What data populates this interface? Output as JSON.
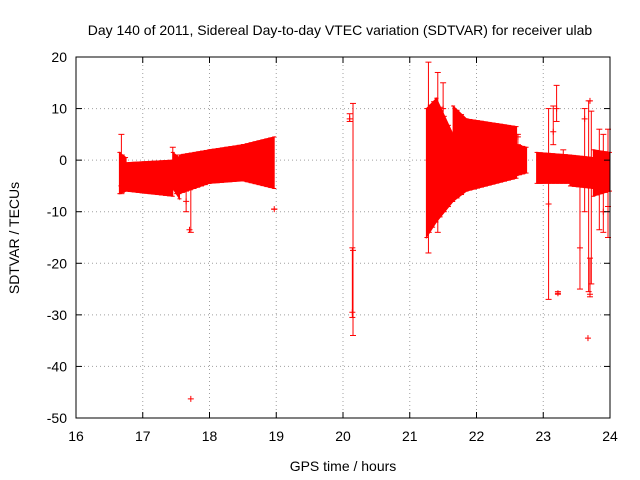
{
  "chart_data": {
    "type": "errorbar-scatter",
    "title": "Day 140 of 2011, Sidereal Day-to-day VTEC variation (SDTVAR) for receiver ulab",
    "xlabel": "GPS time / hours",
    "ylabel": "SDTVAR / TECUs",
    "xlim": [
      16,
      24
    ],
    "ylim": [
      -50,
      20
    ],
    "xticks": [
      16,
      17,
      18,
      19,
      20,
      21,
      22,
      23,
      24
    ],
    "yticks": [
      -50,
      -40,
      -30,
      -20,
      -10,
      0,
      10,
      20
    ],
    "grid": true,
    "series_color": "#ff0000",
    "bands": [
      {
        "x0": 16.65,
        "x1": 16.75,
        "lo0": -6.5,
        "hi0": 1.5,
        "lo1": -6.0,
        "hi1": 0.5
      },
      {
        "x0": 16.75,
        "x1": 17.45,
        "lo0": -6.0,
        "hi0": -0.5,
        "lo1": -7.0,
        "hi1": 0.0
      },
      {
        "x0": 17.45,
        "x1": 17.55,
        "lo0": -5.5,
        "hi0": 1.5,
        "lo1": -7.5,
        "hi1": 0.5
      },
      {
        "x0": 17.55,
        "x1": 18.0,
        "lo0": -6.5,
        "hi0": 1.0,
        "lo1": -4.5,
        "hi1": 2.0
      },
      {
        "x0": 18.0,
        "x1": 18.5,
        "lo0": -4.5,
        "hi0": 2.0,
        "lo1": -4.0,
        "hi1": 3.0
      },
      {
        "x0": 18.5,
        "x1": 18.97,
        "lo0": -4.0,
        "hi0": 3.0,
        "lo1": -5.5,
        "hi1": 4.5
      },
      {
        "x0": 21.25,
        "x1": 21.4,
        "lo0": -15.0,
        "hi0": 10.0,
        "lo1": -12.0,
        "hi1": 12.0
      },
      {
        "x0": 21.4,
        "x1": 21.65,
        "lo0": -12.0,
        "hi0": 12.0,
        "lo1": -8.0,
        "hi1": 5.0
      },
      {
        "x0": 21.65,
        "x1": 21.85,
        "lo0": -8.0,
        "hi0": 10.5,
        "lo1": -6.0,
        "hi1": 8.0
      },
      {
        "x0": 21.85,
        "x1": 22.6,
        "lo0": -6.0,
        "hi0": 8.0,
        "lo1": -3.5,
        "hi1": 6.5
      },
      {
        "x0": 22.6,
        "x1": 22.75,
        "lo0": -3.0,
        "hi0": 3.0,
        "lo1": -2.5,
        "hi1": 2.5
      },
      {
        "x0": 22.9,
        "x1": 23.4,
        "lo0": -4.5,
        "hi0": 1.5,
        "lo1": -4.5,
        "hi1": 1.0
      },
      {
        "x0": 23.4,
        "x1": 23.75,
        "lo0": -5.0,
        "hi0": 1.0,
        "lo1": -5.5,
        "hi1": 0.5
      },
      {
        "x0": 23.75,
        "x1": 24.0,
        "lo0": -7.0,
        "hi0": 2.0,
        "lo1": -6.0,
        "hi1": 1.5
      }
    ],
    "errorbars": [
      {
        "x": 16.68,
        "y": -5.0,
        "lo": -6.5,
        "hi": 5.0
      },
      {
        "x": 17.45,
        "y": -2.0,
        "lo": -3.0,
        "hi": 2.5
      },
      {
        "x": 17.72,
        "y": -4.0,
        "lo": -14.0,
        "hi": 0.0
      },
      {
        "x": 17.65,
        "y": -8.0,
        "lo": -10.0,
        "hi": -5.0
      },
      {
        "x": 18.97,
        "y": -9.5,
        "lo": -9.5,
        "hi": -9.5
      },
      {
        "x": 20.1,
        "y": 8.0,
        "lo": 7.5,
        "hi": 9.0
      },
      {
        "x": 20.15,
        "y": -17.5,
        "lo": -34.0,
        "hi": 11.0
      },
      {
        "x": 20.14,
        "y": -29.5,
        "lo": -30.5,
        "hi": -17.0
      },
      {
        "x": 21.28,
        "y": 0.0,
        "lo": -18.0,
        "hi": 19.0
      },
      {
        "x": 21.42,
        "y": 5.0,
        "lo": -14.0,
        "hi": 17.0
      },
      {
        "x": 21.5,
        "y": 10.0,
        "lo": 8.0,
        "hi": 15.0
      },
      {
        "x": 22.62,
        "y": 4.5,
        "lo": 3.0,
        "hi": 5.0
      },
      {
        "x": 22.95,
        "y": -1.0,
        "lo": -4.5,
        "hi": 1.0
      },
      {
        "x": 23.08,
        "y": -8.5,
        "lo": -27.0,
        "hi": 10.0
      },
      {
        "x": 23.15,
        "y": 5.5,
        "lo": 3.0,
        "hi": 10.5
      },
      {
        "x": 23.2,
        "y": 10.0,
        "lo": 7.5,
        "hi": 14.5
      },
      {
        "x": 23.22,
        "y": -25.8,
        "lo": -26.0,
        "hi": -25.5
      },
      {
        "x": 23.3,
        "y": 0.5,
        "lo": -1.0,
        "hi": 2.0
      },
      {
        "x": 23.55,
        "y": -17.0,
        "lo": -25.0,
        "hi": -4.0
      },
      {
        "x": 23.62,
        "y": 8.0,
        "lo": -10.0,
        "hi": 10.0
      },
      {
        "x": 23.68,
        "y": -5.0,
        "lo": -25.5,
        "hi": 11.5
      },
      {
        "x": 23.7,
        "y": -26.0,
        "lo": -26.5,
        "hi": -19.0
      },
      {
        "x": 23.72,
        "y": -5.0,
        "lo": -24.0,
        "hi": 9.5
      },
      {
        "x": 23.84,
        "y": -2.0,
        "lo": -13.5,
        "hi": 6.0
      },
      {
        "x": 23.9,
        "y": -10.0,
        "lo": -14.0,
        "hi": 5.0
      },
      {
        "x": 23.97,
        "y": -9.0,
        "lo": -15.0,
        "hi": 6.0
      }
    ],
    "points": [
      {
        "x": 17.72,
        "y": -46.3
      },
      {
        "x": 23.67,
        "y": -34.5
      },
      {
        "x": 23.7,
        "y": 11.5
      },
      {
        "x": 17.7,
        "y": -13.5
      }
    ]
  }
}
